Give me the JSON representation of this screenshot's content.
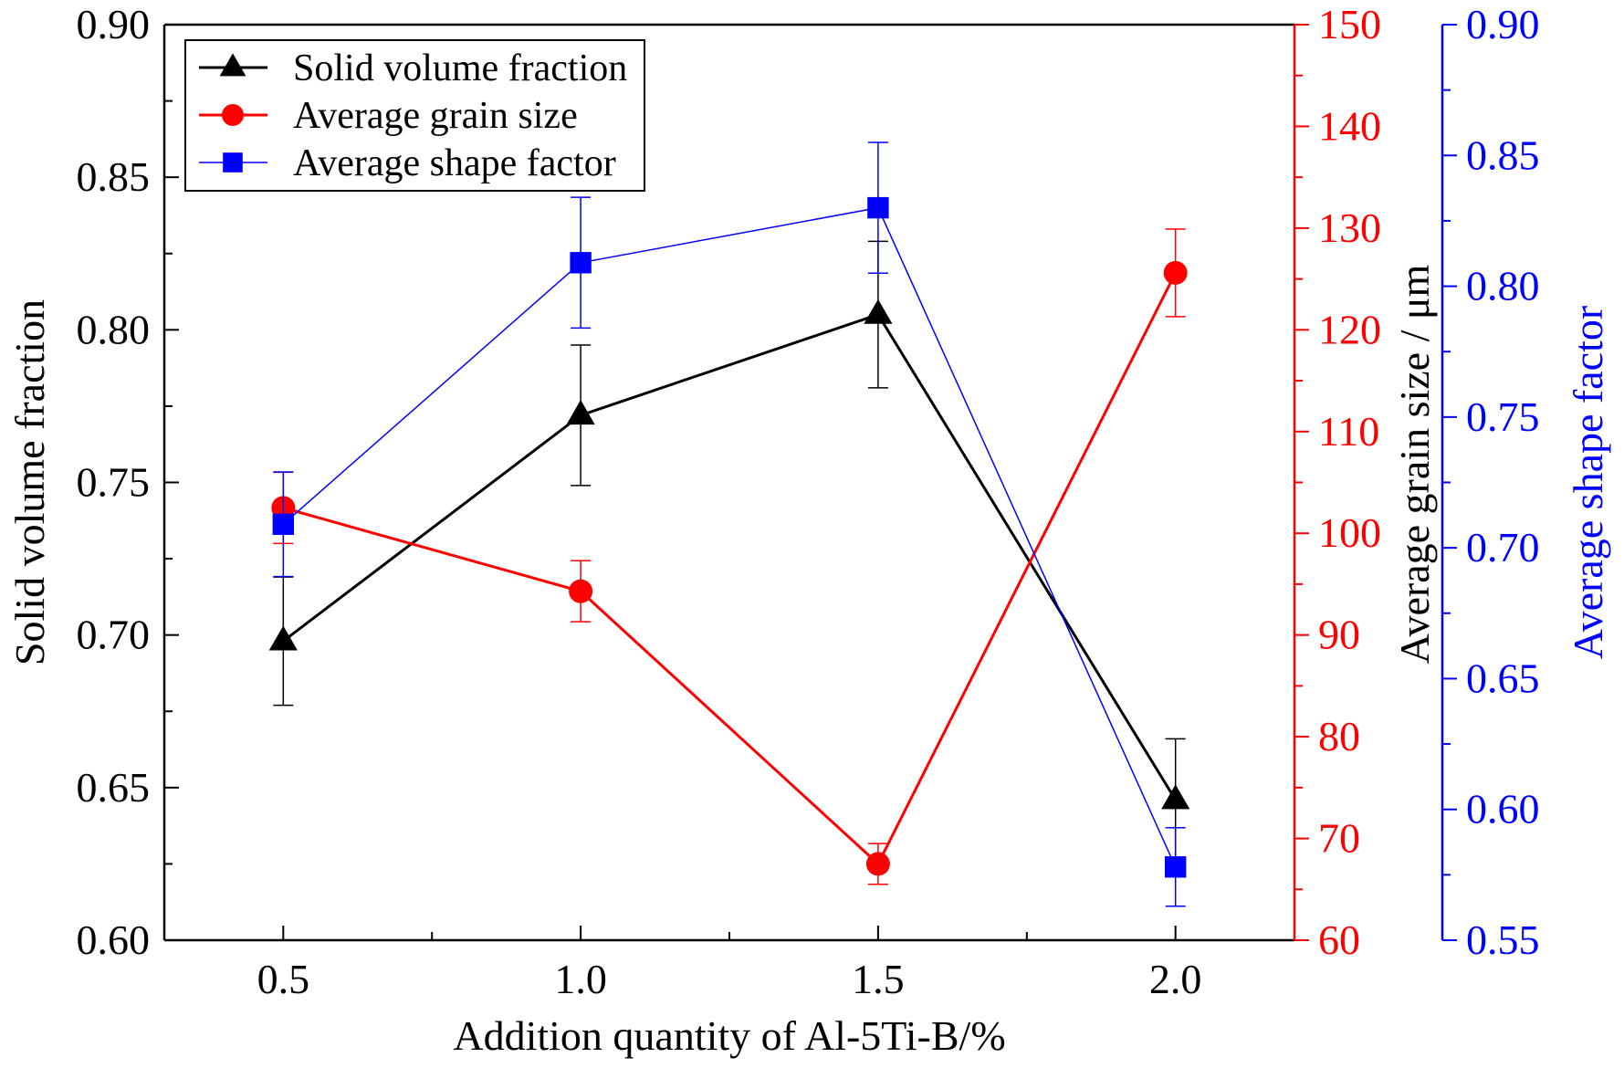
{
  "chart_data": {
    "type": "line",
    "xlabel": "Addition quantity of Al-5Ti-B/%",
    "x": [
      0.5,
      1.0,
      1.5,
      2.0
    ],
    "x_ticks": [
      "0.5",
      "1.0",
      "1.5",
      "2.0"
    ],
    "xlim": [
      0.3,
      2.2
    ],
    "axes": {
      "left": {
        "label": "Solid volume fraction",
        "ylim": [
          0.6,
          0.9
        ],
        "ticks": [
          "0.60",
          "0.65",
          "0.70",
          "0.75",
          "0.80",
          "0.85",
          "0.90"
        ],
        "color": "#000000"
      },
      "right1": {
        "label": "Average grain size / μm",
        "ylim": [
          60,
          150
        ],
        "ticks": [
          "60",
          "70",
          "80",
          "90",
          "100",
          "110",
          "120",
          "130",
          "140",
          "150"
        ],
        "color": "#ff0000"
      },
      "right2": {
        "label": "Average shape factor",
        "ylim": [
          0.55,
          0.9
        ],
        "ticks": [
          "0.55",
          "0.60",
          "0.65",
          "0.70",
          "0.75",
          "0.80",
          "0.85",
          "0.90"
        ],
        "color": "#0000ff"
      }
    },
    "series": [
      {
        "name": "Solid volume fraction",
        "axis": "left",
        "color": "#000000",
        "marker": "triangle",
        "values": [
          0.698,
          0.772,
          0.805,
          0.646
        ],
        "errors": [
          0.021,
          0.023,
          0.024,
          0.02
        ]
      },
      {
        "name": "Average grain size",
        "axis": "right1",
        "color": "#ff0000",
        "marker": "circle",
        "values": [
          102.5,
          94.3,
          67.5,
          125.6
        ],
        "errors": [
          3.5,
          3.0,
          2.0,
          4.3
        ]
      },
      {
        "name": "Average shape factor",
        "axis": "right2",
        "color": "#0000ff",
        "marker": "square",
        "values": [
          0.709,
          0.809,
          0.83,
          0.578
        ],
        "errors": [
          0.02,
          0.025,
          0.025,
          0.015
        ]
      }
    ],
    "legend_position": "top-left"
  }
}
